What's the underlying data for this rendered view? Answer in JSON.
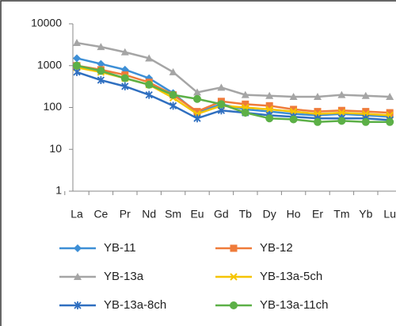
{
  "chart_data": {
    "type": "line",
    "log": true,
    "categories": [
      "La",
      "Ce",
      "Pr",
      "Nd",
      "Sm",
      "Eu",
      "Gd",
      "Tb",
      "Dy",
      "Ho",
      "Er",
      "Tm",
      "Yb",
      "Lu"
    ],
    "ylim": [
      1,
      10000
    ],
    "yticks": [
      1,
      10,
      100,
      1000,
      10000
    ],
    "series": [
      {
        "name": "YB-11",
        "color": "#3d8fd6",
        "marker": "diamond",
        "values": [
          1500,
          1100,
          800,
          500,
          220,
          75,
          120,
          90,
          80,
          70,
          65,
          70,
          65,
          60
        ]
      },
      {
        "name": "YB-12",
        "color": "#ef7b3a",
        "marker": "square",
        "values": [
          1000,
          800,
          600,
          400,
          200,
          80,
          140,
          120,
          110,
          90,
          80,
          85,
          80,
          75
        ]
      },
      {
        "name": "YB-13a",
        "color": "#a5a5a5",
        "marker": "triangle",
        "values": [
          3500,
          2800,
          2100,
          1500,
          700,
          230,
          300,
          200,
          190,
          180,
          180,
          200,
          190,
          180
        ]
      },
      {
        "name": "YB-13a-5ch",
        "color": "#f5c400",
        "marker": "x",
        "values": [
          900,
          700,
          500,
          350,
          170,
          70,
          110,
          100,
          90,
          80,
          70,
          75,
          70,
          65
        ]
      },
      {
        "name": "YB-13a-8ch",
        "color": "#2f6fc0",
        "marker": "star",
        "values": [
          700,
          450,
          320,
          200,
          110,
          55,
          85,
          75,
          65,
          60,
          55,
          55,
          55,
          50
        ]
      },
      {
        "name": "YB-13a-11ch",
        "color": "#5cb047",
        "marker": "circle",
        "values": [
          1000,
          750,
          500,
          350,
          200,
          160,
          120,
          75,
          55,
          52,
          45,
          48,
          45,
          45
        ]
      }
    ]
  }
}
